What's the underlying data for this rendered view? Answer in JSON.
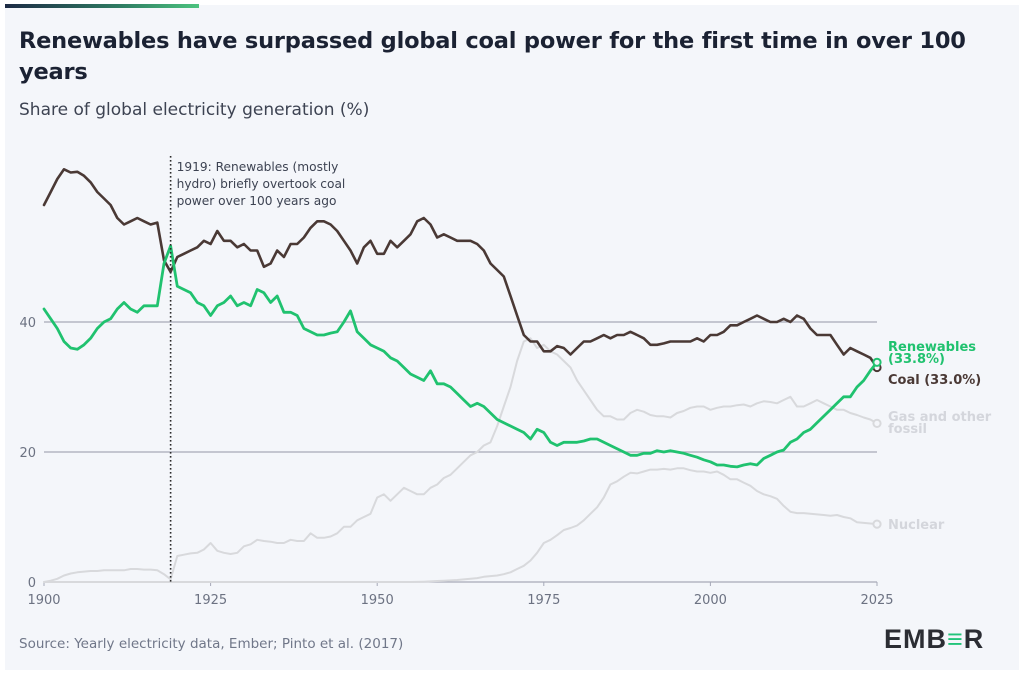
{
  "header": {
    "title": "Renewables have surpassed global coal power for the first time in over 100 years",
    "subtitle": "Share of global electricity generation (%)"
  },
  "footer": {
    "source": "Source: Yearly electricity data, Ember; Pinto et al. (2017)",
    "logo": {
      "left": "EMB",
      "mid": "≡",
      "right": "R",
      "full": "EMBER"
    }
  },
  "colors": {
    "coal": "#4a3935",
    "renewables": "#20c26f",
    "gas": "#d8d9dc",
    "nuclear": "#d8d9dc",
    "grid": "#a6a9b8",
    "annotation_line": "#2b2b2b",
    "renewables_label": "#20c26f",
    "coal_label": "#4a3935",
    "muted_label": "#d4d6dc"
  },
  "chart_data": {
    "type": "line",
    "title": "Renewables have surpassed global coal power for the first time in over 100 years",
    "subtitle": "Share of global electricity generation (%)",
    "xlabel": "",
    "ylabel": "Share of global electricity generation (%)",
    "xlim": [
      1900,
      2025
    ],
    "ylim": [
      0,
      70
    ],
    "x_ticks": [
      1900,
      1925,
      1950,
      1975,
      2000,
      2025
    ],
    "y_ticks": [
      0,
      20,
      40
    ],
    "grid": "horizontal at 20 and 40",
    "legend": "direct labels at right end of lines",
    "annotation": {
      "year": 1919,
      "text_lines": [
        "1919: Renewables (mostly",
        "hydro) briefly overtook coal",
        "power over 100 years ago"
      ]
    },
    "x_start": 1900,
    "series": [
      {
        "name": "Coal",
        "end_label": "Coal (33.0%)",
        "values": [
          58,
          60,
          62,
          63.5,
          63,
          63.1,
          62.5,
          61.5,
          60,
          59,
          58,
          56,
          55,
          55.5,
          56,
          55.5,
          55,
          55.3,
          49.5,
          47.7,
          50,
          50.5,
          51,
          51.5,
          52.5,
          52,
          54,
          52.5,
          52.5,
          51.5,
          52,
          51,
          51,
          48.5,
          49,
          51,
          50,
          52,
          52,
          53,
          54.5,
          55.5,
          55.5,
          55,
          54,
          52.5,
          51,
          49,
          51.5,
          52.5,
          50.5,
          50.5,
          52.5,
          51.5,
          52.5,
          53.5,
          55.5,
          56,
          55,
          53,
          53.5,
          53,
          52.5,
          52.5,
          52.5,
          52,
          51,
          49,
          48,
          47,
          44,
          41,
          38,
          37,
          37,
          35.5,
          35.5,
          36.3,
          36,
          35,
          36,
          37,
          37,
          37.5,
          38,
          37.5,
          38,
          38,
          38.5,
          38,
          37.5,
          36.5,
          36.5,
          36.7,
          37,
          37,
          37,
          37,
          37.5,
          37,
          38,
          38,
          38.5,
          39.5,
          39.5,
          40,
          40.5,
          41,
          40.5,
          40,
          40,
          40.5,
          40,
          41,
          40.5,
          39,
          38,
          38,
          38,
          36.5,
          35,
          36,
          35.5,
          35,
          34.5,
          33.0
        ]
      },
      {
        "name": "Renewables",
        "end_label": "Renewables (33.8%)",
        "values": [
          42,
          40.5,
          39,
          37,
          36,
          35.8,
          36.5,
          37.5,
          39,
          40,
          40.5,
          42,
          43,
          42,
          41.5,
          42.5,
          42.5,
          42.5,
          49,
          51.7,
          45.5,
          45,
          44.5,
          43,
          42.5,
          41,
          42.5,
          43,
          44,
          42.5,
          43,
          42.5,
          45,
          44.5,
          43,
          44,
          41.5,
          41.5,
          41,
          39,
          38.5,
          38,
          38,
          38.3,
          38.5,
          40,
          41.7,
          38.5,
          37.5,
          36.5,
          36,
          35.5,
          34.5,
          34,
          33,
          32,
          31.5,
          31,
          32.5,
          30.5,
          30.5,
          30,
          29,
          28,
          27,
          27.5,
          27,
          26,
          25,
          24.5,
          24,
          23.5,
          23,
          22,
          23.5,
          23,
          21.5,
          21,
          21.5,
          21.5,
          21.5,
          21.7,
          22,
          22,
          21.5,
          21,
          20.5,
          20,
          19.5,
          19.5,
          19.8,
          19.8,
          20.2,
          20,
          20.2,
          20,
          19.8,
          19.5,
          19.2,
          18.8,
          18.5,
          18,
          18,
          17.8,
          17.7,
          18,
          18.2,
          18,
          19,
          19.5,
          20,
          20.3,
          21.5,
          22,
          23,
          23.5,
          24.5,
          25.5,
          26.5,
          27.5,
          28.5,
          28.5,
          30,
          31,
          32.5,
          33.8
        ]
      },
      {
        "name": "Gas and other fossil",
        "end_label": "Gas and other fossil",
        "values": [
          0,
          0.2,
          0.5,
          1,
          1.3,
          1.5,
          1.6,
          1.7,
          1.7,
          1.8,
          1.8,
          1.8,
          1.8,
          2,
          2,
          1.9,
          1.9,
          1.8,
          1.2,
          0.4,
          4,
          4.2,
          4.4,
          4.5,
          5,
          6,
          4.8,
          4.5,
          4.3,
          4.5,
          5.5,
          5.8,
          6.5,
          6.3,
          6.2,
          6,
          6,
          6.5,
          6.3,
          6.3,
          7.5,
          6.8,
          6.8,
          7,
          7.5,
          8.5,
          8.5,
          9.5,
          10,
          10.5,
          13,
          13.5,
          12.5,
          13.5,
          14.5,
          14,
          13.5,
          13.5,
          14.5,
          15,
          16,
          16.5,
          17.5,
          18.5,
          19.5,
          20,
          21,
          21.5,
          24,
          27,
          30,
          34,
          37,
          37.5,
          36,
          36.5,
          35.5,
          35,
          34,
          33,
          31,
          29.5,
          28,
          26.5,
          25.5,
          25.5,
          25,
          25,
          26,
          26.5,
          26.2,
          25.7,
          25.5,
          25.5,
          25.3,
          26,
          26.3,
          26.8,
          27,
          27,
          26.5,
          26.8,
          27,
          27,
          27.2,
          27.3,
          27,
          27.5,
          27.8,
          27.7,
          27.5,
          28,
          28.5,
          27,
          27,
          27.5,
          28,
          27.5,
          27,
          26.5,
          26.5,
          26,
          25.7,
          25.3,
          25,
          24.4
        ]
      },
      {
        "name": "Nuclear",
        "end_label": "Nuclear",
        "values": [
          0,
          0,
          0,
          0,
          0,
          0,
          0,
          0,
          0,
          0,
          0,
          0,
          0,
          0,
          0,
          0,
          0,
          0,
          0,
          0,
          0,
          0,
          0,
          0,
          0,
          0,
          0,
          0,
          0,
          0,
          0,
          0,
          0,
          0,
          0,
          0,
          0,
          0,
          0,
          0,
          0,
          0,
          0,
          0,
          0,
          0,
          0,
          0,
          0,
          0,
          0,
          0,
          0,
          0,
          0,
          0,
          0.02,
          0.05,
          0.1,
          0.15,
          0.2,
          0.25,
          0.3,
          0.4,
          0.5,
          0.6,
          0.8,
          0.9,
          1,
          1.2,
          1.5,
          2,
          2.5,
          3.3,
          4.5,
          6,
          6.5,
          7.2,
          8,
          8.3,
          8.7,
          9.5,
          10.5,
          11.5,
          13,
          15,
          15.5,
          16.2,
          16.8,
          16.7,
          17,
          17.3,
          17.3,
          17.4,
          17.3,
          17.5,
          17.5,
          17.2,
          17,
          17,
          16.8,
          17,
          16.5,
          15.8,
          15.8,
          15.3,
          14.8,
          14,
          13.5,
          13.2,
          12.8,
          11.7,
          10.8,
          10.6,
          10.6,
          10.5,
          10.4,
          10.3,
          10.2,
          10.3,
          10,
          9.8,
          9.2,
          9.1,
          9,
          8.9
        ]
      }
    ]
  }
}
